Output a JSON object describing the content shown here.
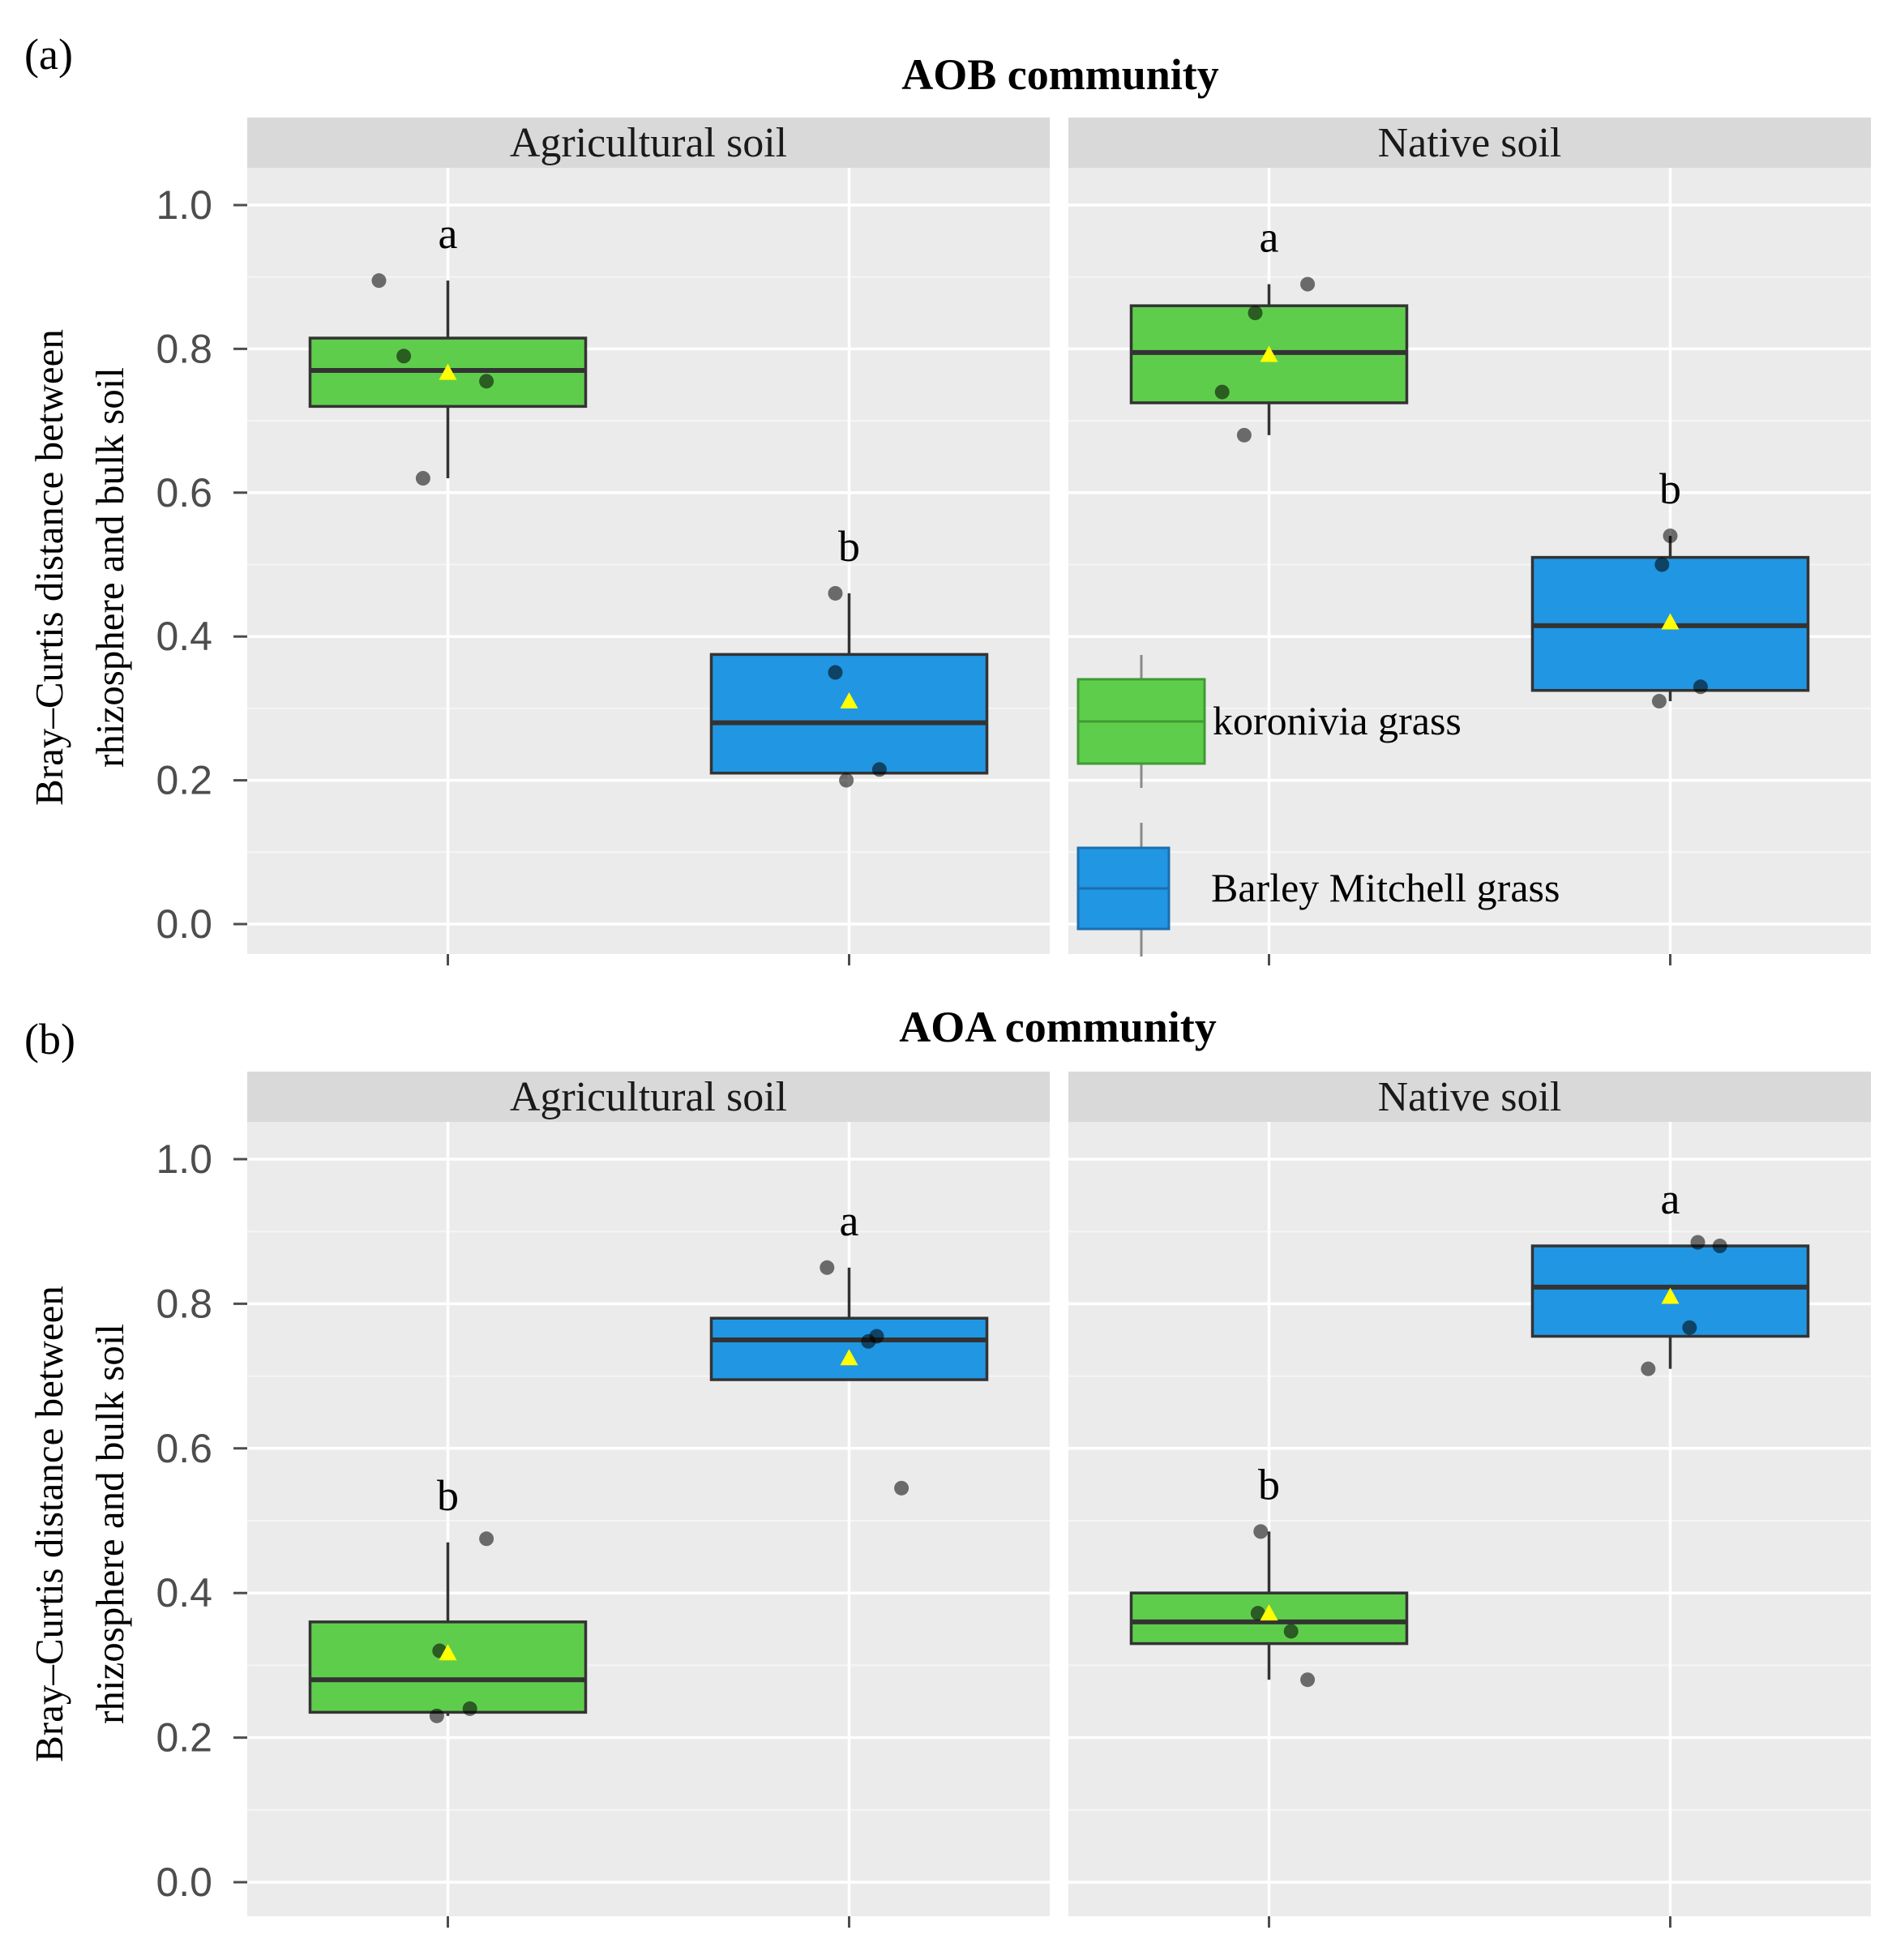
{
  "figure": {
    "panels": [
      {
        "label": "(a)",
        "title": "AOB community",
        "ylabel_line1": "Bray–Curtis distance between",
        "ylabel_line2": "rhizosphere and bulk soil"
      },
      {
        "label": "(b)",
        "title": "AOA community",
        "ylabel_line1": "Bray–Curtis distance between",
        "ylabel_line2": "rhizosphere and bulk soil"
      }
    ],
    "legend": [
      {
        "label": "koronivia grass",
        "color": "#5fcd4c"
      },
      {
        "label": "Barley Mitchell grass",
        "color": "#2196e3"
      }
    ]
  },
  "chart_data": [
    {
      "type": "boxplot",
      "title": "AOB community",
      "panel_label": "(a)",
      "ylabel": "Bray–Curtis distance between rhizosphere and bulk soil",
      "ylim": [
        -0.04,
        1.1
      ],
      "yticks": [
        0.0,
        0.2,
        0.4,
        0.6,
        0.8,
        1.0
      ],
      "ytick_labels": [
        "0.0",
        "0.2",
        "0.4",
        "0.6",
        "0.8",
        "1.0"
      ],
      "grid": true,
      "facets": [
        {
          "name": "Agricultural soil",
          "groups": [
            {
              "name": "koronivia grass",
              "color": "#5fcd4c",
              "whisker_low": 0.62,
              "q1": 0.72,
              "median": 0.77,
              "q3": 0.815,
              "whisker_high": 0.895,
              "mean": 0.767,
              "letter": "a",
              "points": [
                [
                  -0.25,
                  0.895
                ],
                [
                  -0.16,
                  0.79
                ],
                [
                  0.14,
                  0.755
                ],
                [
                  -0.09,
                  0.62
                ]
              ]
            },
            {
              "name": "Barley Mitchell grass",
              "color": "#2196e3",
              "whisker_low": 0.21,
              "q1": 0.21,
              "median": 0.28,
              "q3": 0.375,
              "whisker_high": 0.46,
              "mean": 0.31,
              "letter": "b",
              "points": [
                [
                  -0.05,
                  0.46
                ],
                [
                  -0.05,
                  0.35
                ],
                [
                  -0.01,
                  0.2
                ],
                [
                  0.11,
                  0.215
                ]
              ]
            }
          ]
        },
        {
          "name": "Native soil",
          "groups": [
            {
              "name": "koronivia grass",
              "color": "#5fcd4c",
              "whisker_low": 0.68,
              "q1": 0.725,
              "median": 0.795,
              "q3": 0.86,
              "whisker_high": 0.89,
              "mean": 0.792,
              "letter": "a",
              "points": [
                [
                  -0.05,
                  0.85
                ],
                [
                  0.14,
                  0.89
                ],
                [
                  -0.17,
                  0.74
                ],
                [
                  -0.09,
                  0.68
                ]
              ]
            },
            {
              "name": "Barley Mitchell grass",
              "color": "#2196e3",
              "whisker_low": 0.31,
              "q1": 0.325,
              "median": 0.415,
              "q3": 0.51,
              "whisker_high": 0.54,
              "mean": 0.42,
              "letter": "b",
              "points": [
                [
                  -0.03,
                  0.5
                ],
                [
                  -0.04,
                  0.31
                ],
                [
                  0.11,
                  0.33
                ],
                [
                  0.0,
                  0.54
                ]
              ]
            }
          ]
        }
      ],
      "legend_title": "",
      "legend_position": "inside Native soil facet, lower-left"
    },
    {
      "type": "boxplot",
      "title": "AOA community",
      "panel_label": "(b)",
      "ylabel": "Bray–Curtis distance between rhizosphere and bulk soil",
      "ylim": [
        -0.04,
        1.1
      ],
      "yticks": [
        0.0,
        0.2,
        0.4,
        0.6,
        0.8,
        1.0
      ],
      "ytick_labels": [
        "0.0",
        "0.2",
        "0.4",
        "0.6",
        "0.8",
        "1.0"
      ],
      "grid": true,
      "facets": [
        {
          "name": "Agricultural soil",
          "groups": [
            {
              "name": "koronivia grass",
              "color": "#5fcd4c",
              "whisker_low": 0.23,
              "q1": 0.235,
              "median": 0.28,
              "q3": 0.36,
              "whisker_high": 0.47,
              "mean": 0.317,
              "letter": "b",
              "points": [
                [
                  0.14,
                  0.475
                ],
                [
                  -0.03,
                  0.32
                ],
                [
                  0.08,
                  0.24
                ],
                [
                  -0.04,
                  0.23
                ]
              ]
            },
            {
              "name": "Barley Mitchell grass",
              "color": "#2196e3",
              "whisker_low": 0.695,
              "q1": 0.695,
              "median": 0.75,
              "q3": 0.78,
              "whisker_high": 0.85,
              "mean": 0.725,
              "letter": "a",
              "points": [
                [
                  -0.08,
                  0.85
                ],
                [
                  0.07,
                  0.748
                ],
                [
                  0.1,
                  0.755
                ],
                [
                  0.19,
                  0.545
                ]
              ]
            }
          ]
        },
        {
          "name": "Native soil",
          "groups": [
            {
              "name": "koronivia grass",
              "color": "#5fcd4c",
              "whisker_low": 0.28,
              "q1": 0.33,
              "median": 0.36,
              "q3": 0.4,
              "whisker_high": 0.485,
              "mean": 0.372,
              "letter": "b",
              "points": [
                [
                  -0.03,
                  0.485
                ],
                [
                  -0.04,
                  0.372
                ],
                [
                  0.08,
                  0.347
                ],
                [
                  0.14,
                  0.28
                ]
              ]
            },
            {
              "name": "Barley Mitchell grass",
              "color": "#2196e3",
              "whisker_low": 0.71,
              "q1": 0.755,
              "median": 0.823,
              "q3": 0.88,
              "whisker_high": 0.88,
              "mean": 0.81,
              "letter": "a",
              "points": [
                [
                  0.1,
                  0.885
                ],
                [
                  0.18,
                  0.88
                ],
                [
                  0.07,
                  0.767
                ],
                [
                  -0.08,
                  0.71
                ]
              ]
            }
          ]
        }
      ]
    }
  ]
}
